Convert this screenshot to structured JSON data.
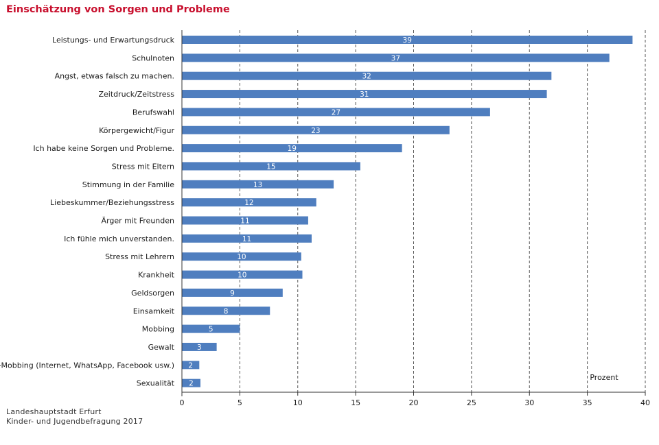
{
  "source": {
    "line1": "Landeshauptstadt Erfurt",
    "line2": "Kinder- und Jugendbefragung 2017"
  },
  "colors": {
    "bar": "#4f7ebf",
    "title": "#c8102e",
    "bar_label": "#ffffff",
    "grid": "#555555"
  },
  "chart_data": {
    "type": "bar",
    "orientation": "horizontal",
    "title": "Einschätzung von Sorgen und Probleme",
    "unit_label": "Prozent",
    "xlim": [
      0,
      40
    ],
    "x_ticks": [
      0,
      5,
      10,
      15,
      20,
      25,
      30,
      35,
      40
    ],
    "grid": "vertical dashed",
    "categories": [
      "Leistungs- und Erwartungsdruck",
      "Schulnoten",
      "Angst, etwas falsch zu machen.",
      "Zeitdruck/Zeitstress",
      "Berufswahl",
      "Körpergewicht/Figur",
      "Ich habe keine Sorgen und Probleme.",
      "Stress mit Eltern",
      "Stimmung in der Familie",
      "Liebeskummer/Beziehungsstress",
      "Ärger mit Freunden",
      "Ich fühle mich unverstanden.",
      "Stress mit Lehrern",
      "Krankheit",
      "Geldsorgen",
      "Einsamkeit",
      "Mobbing",
      "Gewalt",
      "Cyber-Mobbing (Internet, WhatsApp, Facebook usw.)",
      "Sexualität"
    ],
    "values": [
      38.9,
      36.9,
      31.9,
      31.5,
      26.6,
      23.1,
      19.0,
      15.4,
      13.1,
      11.6,
      10.9,
      11.2,
      10.3,
      10.4,
      8.7,
      7.6,
      5.0,
      3.0,
      1.5,
      1.6
    ],
    "data_labels": [
      "39",
      "37",
      "32",
      "31",
      "27",
      "23",
      "19",
      "15",
      "13",
      "12",
      "11",
      "11",
      "10",
      "10",
      "9",
      "8",
      "5",
      "3",
      "2",
      "2"
    ]
  }
}
